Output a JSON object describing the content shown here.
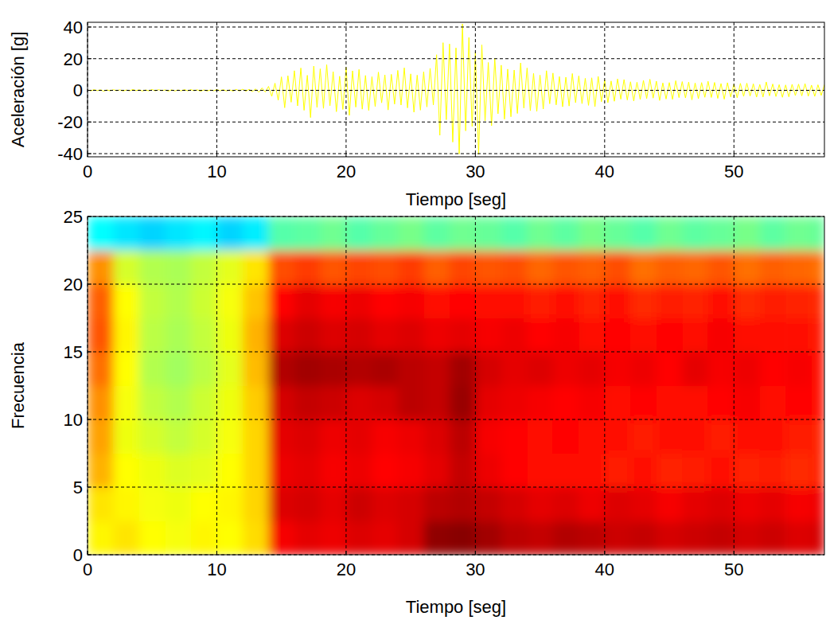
{
  "chart_data": [
    {
      "type": "line",
      "y_label": "Aceleración [g]",
      "x_label": "Tiempo [seg]",
      "color": "#ffff00",
      "grid": true,
      "xlim": [
        0,
        57
      ],
      "ylim": [
        -42,
        43
      ],
      "xticks": [
        0,
        10,
        20,
        30,
        40,
        50
      ],
      "yticks": [
        -40,
        -20,
        0,
        20,
        40
      ],
      "x": [
        0,
        0.25,
        0.5,
        0.75,
        1,
        1.25,
        1.5,
        1.75,
        2,
        2.25,
        2.5,
        2.75,
        3,
        3.25,
        3.5,
        3.75,
        4,
        4.25,
        4.5,
        4.75,
        5,
        5.25,
        5.5,
        5.75,
        6,
        6.25,
        6.5,
        6.75,
        7,
        7.25,
        7.5,
        7.75,
        8,
        8.25,
        8.5,
        8.75,
        9,
        9.25,
        9.5,
        9.75,
        10,
        10.25,
        10.5,
        10.75,
        11,
        11.25,
        11.5,
        11.75,
        12,
        12.25,
        12.5,
        12.75,
        13,
        13.25,
        13.5,
        13.75,
        14,
        14.25,
        14.5,
        14.75,
        15,
        15.25,
        15.5,
        15.75,
        16,
        16.25,
        16.5,
        16.75,
        17,
        17.25,
        17.5,
        17.75,
        18,
        18.25,
        18.5,
        18.75,
        19,
        19.25,
        19.5,
        19.75,
        20,
        20.25,
        20.5,
        20.75,
        21,
        21.25,
        21.5,
        21.75,
        22,
        22.25,
        22.5,
        22.75,
        23,
        23.25,
        23.5,
        23.75,
        24,
        24.25,
        24.5,
        24.75,
        25,
        25.25,
        25.5,
        25.75,
        26,
        26.25,
        26.5,
        26.75,
        27,
        27.25,
        27.5,
        27.75,
        28,
        28.25,
        28.5,
        28.75,
        29,
        29.25,
        29.5,
        29.75,
        30,
        30.25,
        30.5,
        30.75,
        31,
        31.25,
        31.5,
        31.75,
        32,
        32.25,
        32.5,
        32.75,
        33,
        33.25,
        33.5,
        33.75,
        34,
        34.25,
        34.5,
        34.75,
        35,
        35.25,
        35.5,
        35.75,
        36,
        36.25,
        36.5,
        36.75,
        37,
        37.25,
        37.5,
        37.75,
        38,
        38.25,
        38.5,
        38.75,
        39,
        39.25,
        39.5,
        39.75,
        40,
        40.25,
        40.5,
        40.75,
        41,
        41.25,
        41.5,
        41.75,
        42,
        42.25,
        42.5,
        42.75,
        43,
        43.25,
        43.5,
        43.75,
        44,
        44.25,
        44.5,
        44.75,
        45,
        45.25,
        45.5,
        45.75,
        46,
        46.25,
        46.5,
        46.75,
        47,
        47.25,
        47.5,
        47.75,
        48,
        48.25,
        48.5,
        48.75,
        49,
        49.25,
        49.5,
        49.75,
        50,
        50.25,
        50.5,
        50.75,
        51,
        51.25,
        51.5,
        51.75,
        52,
        52.25,
        52.5,
        52.75,
        53,
        53.25,
        53.5,
        53.75,
        54,
        54.25,
        54.5,
        54.75,
        55,
        55.25,
        55.5,
        55.75,
        56,
        56.25,
        56.5,
        56.75,
        57
      ],
      "values": [
        0.2,
        -0.3,
        0.4,
        -0.2,
        0.3,
        -0.5,
        0.2,
        -0.3,
        0.4,
        -0.2,
        0.3,
        -0.4,
        0.2,
        -0.3,
        0.5,
        -0.2,
        0.3,
        -0.4,
        0.2,
        -0.3,
        0.5,
        -0.3,
        0.4,
        -0.2,
        0.3,
        -0.5,
        0.3,
        -0.4,
        0.2,
        -0.3,
        0.4,
        -0.3,
        0.4,
        -0.2,
        0.3,
        -0.5,
        0.3,
        -0.4,
        0.2,
        -0.3,
        0.5,
        -0.3,
        0.4,
        -0.4,
        0.3,
        -0.5,
        0.6,
        -0.4,
        0.7,
        -0.5,
        0.6,
        -0.8,
        0.9,
        -1.2,
        1.5,
        -1.1,
        2.5,
        -3.8,
        4.5,
        -6.2,
        8.5,
        -11.0,
        9.2,
        -7.5,
        12.4,
        -9.8,
        14.1,
        -12.6,
        9.5,
        -17.2,
        15.3,
        -10.8,
        13.6,
        -11.4,
        16.2,
        -9.7,
        11.8,
        -13.5,
        8.9,
        -12.1,
        14.5,
        -15.8,
        12.3,
        -10.6,
        13.2,
        -11.9,
        9.4,
        -12.7,
        8.6,
        -10.2,
        11.5,
        -7.9,
        9.8,
        -12.4,
        10.1,
        -8.7,
        12.6,
        -9.3,
        14.2,
        -11.1,
        10.4,
        -13.8,
        9.6,
        -12.5,
        11.7,
        -10.5,
        13.9,
        -9.2,
        22.5,
        -28.4,
        30.1,
        -18.6,
        29.3,
        -32.7,
        26.8,
        -40.2,
        42.0,
        -25.6,
        33.4,
        -22.8,
        24.1,
        -40.5,
        28.7,
        -19.3,
        17.6,
        -22.4,
        20.3,
        -14.8,
        15.9,
        -18.2,
        13.4,
        -16.7,
        12.8,
        -14.6,
        17.3,
        -11.2,
        14.1,
        -12.9,
        10.7,
        -13.3,
        9.6,
        -11.8,
        12.4,
        -8.5,
        10.9,
        -9.2,
        8.7,
        -10.4,
        8.3,
        -9.9,
        10.6,
        -7.8,
        9.1,
        -8.4,
        7.6,
        -9.5,
        7.9,
        -10.3,
        8.8,
        -7.2,
        6.5,
        -7.8,
        5.9,
        -6.9,
        7.2,
        -5.6,
        6.8,
        -6.1,
        5.4,
        -6.7,
        5.1,
        -5.8,
        6.3,
        -5.2,
        7.0,
        -4.9,
        5.8,
        -6.4,
        4.7,
        -5.5,
        4.9,
        -5.7,
        6.1,
        -4.6,
        5.5,
        -4.8,
        5.2,
        -6.0,
        4.6,
        -5.3,
        4.9,
        -4.4,
        5.7,
        -4.5,
        5.0,
        -5.1,
        4.3,
        -5.6,
        4.8,
        -4.2,
        3.9,
        -4.7,
        4.4,
        -3.8,
        4.5,
        -3.6,
        4.1,
        -4.3,
        3.7,
        -4.2,
        5.3,
        -3.5,
        4.0,
        -3.9,
        3.6,
        -4.4,
        3.4,
        -4.1,
        3.8,
        -3.3,
        3.9,
        -3.5,
        4.2,
        -3.7,
        3.3,
        -3.8,
        3.5,
        -3.2,
        3.6
      ]
    },
    {
      "type": "heatmap",
      "y_label": "Frecuencia",
      "x_label": "Tiempo [seg]",
      "grid": true,
      "xlim": [
        0,
        57
      ],
      "ylim": [
        0,
        25
      ],
      "xticks": [
        0,
        10,
        20,
        30,
        40,
        50
      ],
      "yticks": [
        0,
        5,
        10,
        15,
        20,
        25
      ],
      "clim": [
        -2,
        10
      ],
      "x_edges": [
        0,
        2,
        4,
        6,
        8,
        10,
        12,
        14,
        16,
        18,
        20,
        22,
        24,
        26,
        28,
        30,
        32,
        34,
        36,
        38,
        40,
        42,
        44,
        46,
        48,
        50,
        52,
        54,
        56,
        57
      ],
      "y_edges": [
        0,
        2.5,
        5,
        7.5,
        10,
        12.5,
        15,
        17.5,
        20,
        22.5,
        25
      ],
      "cells": [
        [
          5.6,
          5.8,
          5.5,
          5.4,
          5.6,
          5.5,
          5.9,
          8.6,
          8.8,
          8.7,
          8.9,
          8.8,
          9.0,
          9.8,
          9.9,
          9.6,
          9.3,
          9.2,
          9.4,
          9.3,
          9.1,
          9.2,
          9.0,
          9.1,
          9.2,
          9.0,
          9.1,
          8.9,
          9.0
        ],
        [
          5.8,
          5.6,
          5.4,
          5.3,
          5.5,
          5.6,
          6.0,
          8.9,
          9.0,
          8.8,
          9.1,
          8.9,
          9.0,
          9.3,
          9.4,
          9.2,
          9.0,
          8.8,
          8.9,
          8.7,
          8.9,
          8.8,
          8.6,
          8.8,
          8.9,
          8.7,
          8.8,
          8.6,
          8.7
        ],
        [
          6.4,
          5.5,
          5.3,
          5.1,
          5.2,
          5.5,
          6.0,
          8.7,
          8.8,
          8.6,
          8.7,
          8.5,
          8.6,
          8.8,
          9.2,
          8.7,
          8.5,
          8.4,
          8.3,
          8.4,
          8.2,
          8.3,
          8.1,
          8.2,
          8.3,
          8.1,
          8.2,
          8.0,
          8.1
        ],
        [
          6.6,
          5.3,
          5.0,
          4.8,
          5.0,
          5.4,
          6.0,
          8.8,
          8.9,
          8.7,
          8.8,
          8.6,
          8.7,
          8.9,
          9.3,
          8.6,
          8.5,
          8.4,
          8.5,
          8.3,
          8.4,
          8.2,
          8.4,
          8.3,
          8.2,
          8.4,
          8.3,
          8.2,
          8.1
        ],
        [
          6.8,
          5.4,
          4.8,
          4.6,
          4.9,
          5.3,
          6.1,
          9.0,
          9.2,
          9.1,
          8.9,
          9.0,
          9.3,
          9.2,
          9.7,
          8.8,
          8.7,
          8.6,
          8.5,
          8.6,
          8.4,
          8.5,
          8.3,
          8.4,
          8.5,
          8.6,
          8.4,
          8.5,
          8.3
        ],
        [
          7.2,
          5.5,
          4.6,
          4.4,
          4.7,
          5.2,
          6.3,
          9.4,
          9.6,
          9.5,
          9.4,
          9.5,
          9.3,
          9.2,
          9.6,
          9.0,
          8.8,
          8.9,
          8.7,
          8.8,
          8.6,
          8.7,
          8.5,
          8.8,
          8.6,
          8.7,
          8.5,
          8.6,
          8.4
        ],
        [
          7.5,
          5.6,
          4.7,
          4.5,
          4.8,
          5.3,
          6.4,
          8.9,
          9.1,
          8.9,
          9.0,
          8.8,
          8.9,
          8.7,
          8.8,
          8.6,
          8.7,
          8.5,
          8.6,
          8.4,
          8.5,
          8.3,
          8.5,
          8.4,
          8.6,
          8.3,
          8.4,
          8.3,
          8.2
        ],
        [
          7.4,
          5.5,
          4.8,
          4.6,
          4.9,
          5.4,
          6.2,
          8.5,
          8.8,
          8.6,
          8.7,
          8.5,
          8.6,
          8.4,
          8.5,
          8.3,
          8.4,
          8.2,
          8.3,
          8.1,
          8.3,
          8.0,
          8.2,
          8.1,
          8.3,
          8.0,
          8.2,
          8.1,
          8.0
        ],
        [
          6.8,
          5.0,
          4.6,
          4.5,
          4.8,
          5.2,
          5.8,
          7.6,
          7.8,
          7.5,
          7.7,
          7.6,
          7.8,
          7.4,
          7.7,
          7.5,
          7.6,
          7.3,
          7.5,
          7.4,
          7.6,
          7.2,
          7.4,
          7.3,
          7.5,
          7.2,
          7.4,
          7.3,
          7.2
        ],
        [
          2.5,
          2.2,
          2.0,
          2.2,
          2.4,
          2.0,
          2.3,
          3.5,
          3.6,
          3.8,
          3.5,
          3.7,
          3.9,
          3.6,
          3.8,
          3.7,
          3.5,
          3.8,
          3.6,
          3.9,
          3.7,
          3.5,
          3.8,
          3.6,
          3.7,
          3.9,
          3.6,
          3.8,
          3.7
        ]
      ]
    }
  ]
}
